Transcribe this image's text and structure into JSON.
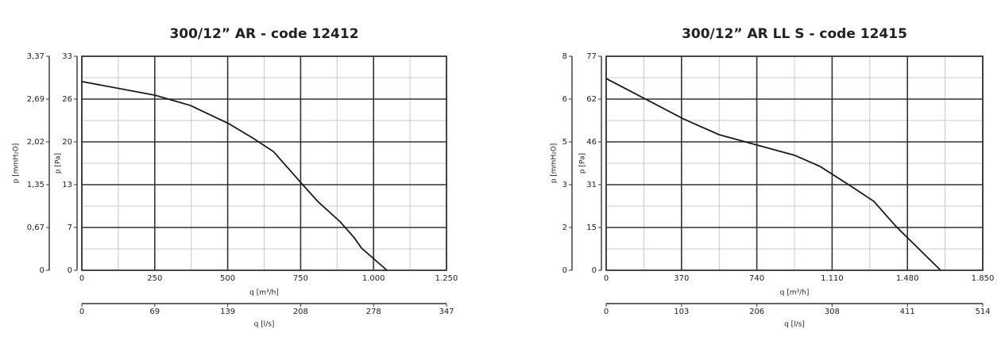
{
  "chart_data": [
    {
      "type": "line",
      "title": "300/12” AR - code 12412",
      "xlabel": "q [m³/h]",
      "ylabel": "p [Pa]",
      "y2label": "p [mmH₂O]",
      "x2label": "q [l/s]",
      "x": [
        0,
        251,
        373,
        504,
        586,
        657,
        755,
        809,
        885,
        934,
        959,
        1046
      ],
      "series": [
        {
          "color": "#1a1a1a",
          "values": [
            29.1,
            27.0,
            25.4,
            22.6,
            20.4,
            18.3,
            13.3,
            10.6,
            7.5,
            5.0,
            3.4,
            0
          ]
        }
      ],
      "xlim": [
        0,
        1250
      ],
      "xticks": [
        0,
        250,
        500,
        750,
        {
          "value": 1000,
          "label": "1.000"
        },
        {
          "value": 1250,
          "label": "1.250"
        }
      ],
      "ylim": [
        0,
        33
      ],
      "yticks": [
        0,
        {
          "value": 6.6,
          "label": "7"
        },
        {
          "value": 13.2,
          "label": "13"
        },
        {
          "value": 19.8,
          "label": "20"
        },
        {
          "value": 26.4,
          "label": "26"
        },
        33
      ],
      "y2lim": [
        0,
        3.365
      ],
      "y2ticks": [
        0,
        {
          "value": 0.673,
          "label": "0,67"
        },
        {
          "value": 1.346,
          "label": "1,35"
        },
        {
          "value": 2.019,
          "label": "2,02"
        },
        {
          "value": 2.692,
          "label": "2,69"
        },
        {
          "value": 3.365,
          "label": "3,37"
        }
      ],
      "x2lim": [
        0,
        347.2
      ],
      "x2ticks": [
        0,
        {
          "value": 69.4,
          "label": "69"
        },
        {
          "value": 138.9,
          "label": "139"
        },
        {
          "value": 208.3,
          "label": "208"
        },
        {
          "value": 277.8,
          "label": "278"
        },
        {
          "value": 347.2,
          "label": "347"
        }
      ],
      "grid": true,
      "minor_grid": true
    },
    {
      "type": "line",
      "title": "300/12” AR LL S - code 12415",
      "xlabel": "q [m³/h]",
      "ylabel": "p [Pa]",
      "y2label": "p [mmH₂O]",
      "x2label": "q [l/s]",
      "x": [
        0,
        379,
        554,
        925,
        1050,
        1210,
        1315,
        1425,
        1643
      ],
      "series": [
        {
          "color": "#1a1a1a",
          "values": [
            69.0,
            54.5,
            48.8,
            41.4,
            37.4,
            29.9,
            24.8,
            15.7,
            0
          ]
        }
      ],
      "xlim": [
        0,
        1850
      ],
      "xticks": [
        0,
        370,
        740,
        {
          "value": 1110,
          "label": "1.110"
        },
        {
          "value": 1480,
          "label": "1.480"
        },
        {
          "value": 1850,
          "label": "1.850"
        }
      ],
      "ylim": [
        0,
        77
      ],
      "yticks": [
        0,
        {
          "value": 15.4,
          "label": "15"
        },
        {
          "value": 30.8,
          "label": "31"
        },
        {
          "value": 46.2,
          "label": "46"
        },
        {
          "value": 61.6,
          "label": "62"
        },
        77
      ],
      "y2lim": [
        0,
        7.85
      ],
      "y2ticks": [
        0,
        {
          "value": 1.57,
          "label": "2"
        },
        {
          "value": 3.14,
          "label": "3"
        },
        {
          "value": 4.71,
          "label": "5"
        },
        {
          "value": 6.28,
          "label": "6"
        },
        {
          "value": 7.85,
          "label": "8"
        }
      ],
      "x2lim": [
        0,
        513.9
      ],
      "x2ticks": [
        0,
        {
          "value": 102.8,
          "label": "103"
        },
        {
          "value": 205.6,
          "label": "206"
        },
        {
          "value": 308.3,
          "label": "308"
        },
        {
          "value": 411.1,
          "label": "411"
        },
        {
          "value": 513.9,
          "label": "514"
        }
      ],
      "grid": true,
      "minor_grid": true
    }
  ]
}
